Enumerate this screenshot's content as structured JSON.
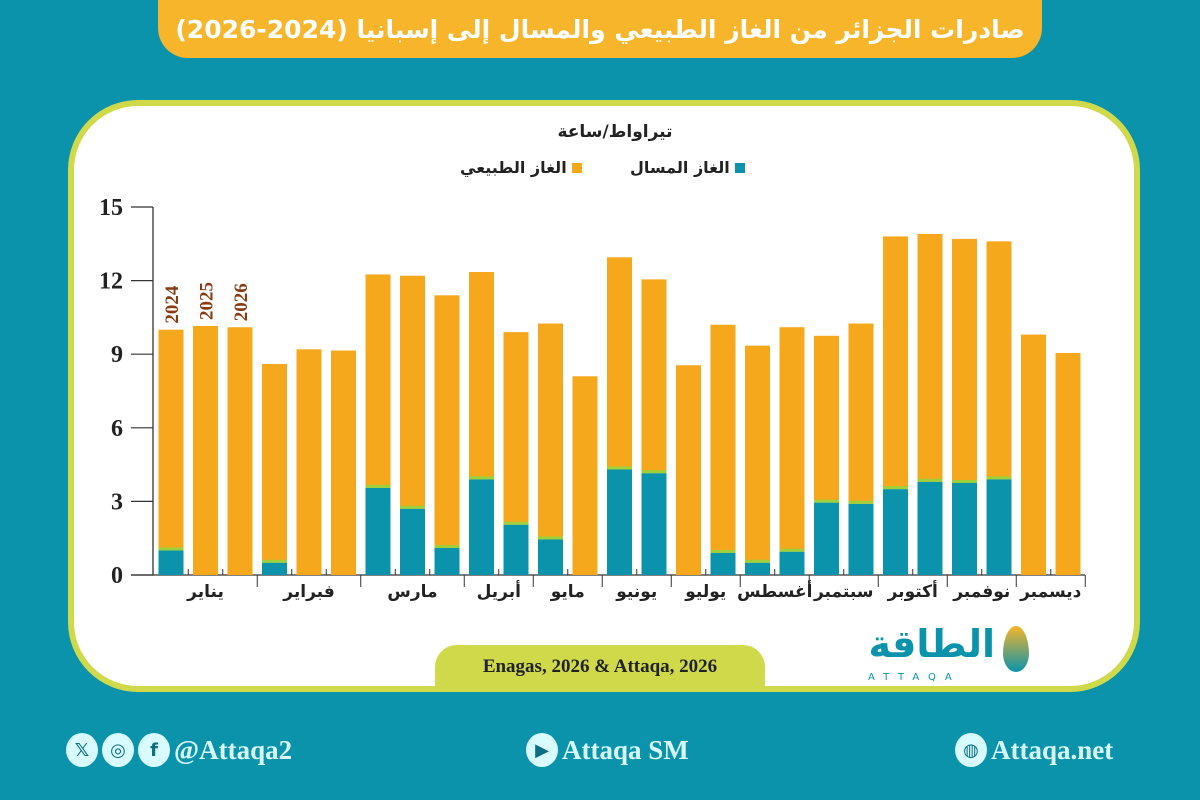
{
  "title": "صادرات الجزائر من الغاز الطبيعي والمسال إلى إسبانيا (2024-2026)",
  "source": "Enagas, 2026 & Attaqa, 2026",
  "logo": {
    "arabic": "الطاقة",
    "english": "ATTAQA"
  },
  "footer": {
    "social_handle": "@Attaqa2",
    "social_icons": [
      "x-icon",
      "instagram-icon",
      "facebook-icon"
    ],
    "youtube": "Attaqa SM",
    "website": "Attaqa.net"
  },
  "colors": {
    "lng": "#0b93ab",
    "natural_gas": "#f5a81c",
    "background": "#0a93ab",
    "title_banner": "#f6b52b",
    "frame": "#cfd94a",
    "year_label": "#8a3b12"
  },
  "chart_data": {
    "type": "bar",
    "stacked": true,
    "ylabel": "تيراواط/ساعة",
    "ylim": [
      0,
      15
    ],
    "yticks": [
      "0",
      "3",
      "6",
      "9",
      "12",
      "15"
    ],
    "grid": false,
    "legend_position": "top",
    "legend": [
      {
        "key": "lng",
        "label": "الغاز المسال"
      },
      {
        "key": "natural_gas",
        "label": "الغاز الطبيعي"
      }
    ],
    "year_labels": [
      "2024",
      "2025",
      "2026"
    ],
    "months": [
      "يناير",
      "فبراير",
      "مارس",
      "أبريل",
      "مايو",
      "يونيو",
      "يوليو",
      "أغسطس",
      "سبتمبر",
      "أكتوبر",
      "نوفمبر",
      "ديسمبر"
    ],
    "bars": [
      {
        "month": 0,
        "year": "2024",
        "lng": 1.0,
        "natural_gas": 9.0
      },
      {
        "month": 0,
        "year": "2025",
        "lng": 0,
        "natural_gas": 10.15
      },
      {
        "month": 0,
        "year": "2026",
        "lng": 0,
        "natural_gas": 10.1
      },
      {
        "month": 1,
        "year": "2024",
        "lng": 0.5,
        "natural_gas": 8.1
      },
      {
        "month": 1,
        "year": "2025",
        "lng": 0,
        "natural_gas": 9.2
      },
      {
        "month": 1,
        "year": "2026",
        "lng": 0,
        "natural_gas": 9.15
      },
      {
        "month": 2,
        "year": "2024",
        "lng": 3.55,
        "natural_gas": 8.7
      },
      {
        "month": 2,
        "year": "2025",
        "lng": 2.7,
        "natural_gas": 9.5
      },
      {
        "month": 2,
        "year": "2026",
        "lng": 1.1,
        "natural_gas": 10.3
      },
      {
        "month": 3,
        "year": "2024",
        "lng": 3.9,
        "natural_gas": 8.45
      },
      {
        "month": 3,
        "year": "2025",
        "lng": 2.05,
        "natural_gas": 7.85
      },
      {
        "month": 4,
        "year": "2024",
        "lng": 1.45,
        "natural_gas": 8.8
      },
      {
        "month": 4,
        "year": "2025",
        "lng": 0,
        "natural_gas": 8.1
      },
      {
        "month": 5,
        "year": "2024",
        "lng": 4.3,
        "natural_gas": 8.65
      },
      {
        "month": 5,
        "year": "2025",
        "lng": 4.15,
        "natural_gas": 7.9
      },
      {
        "month": 6,
        "year": "2024",
        "lng": 0,
        "natural_gas": 8.55
      },
      {
        "month": 6,
        "year": "2025",
        "lng": 0.9,
        "natural_gas": 9.3
      },
      {
        "month": 7,
        "year": "2024",
        "lng": 0.5,
        "natural_gas": 8.85
      },
      {
        "month": 7,
        "year": "2025",
        "lng": 0.95,
        "natural_gas": 9.15
      },
      {
        "month": 8,
        "year": "2024",
        "lng": 2.95,
        "natural_gas": 6.8
      },
      {
        "month": 8,
        "year": "2025",
        "lng": 2.9,
        "natural_gas": 7.35
      },
      {
        "month": 9,
        "year": "2024",
        "lng": 3.5,
        "natural_gas": 10.3
      },
      {
        "month": 9,
        "year": "2025",
        "lng": 3.8,
        "natural_gas": 10.1
      },
      {
        "month": 10,
        "year": "2024",
        "lng": 3.75,
        "natural_gas": 9.95
      },
      {
        "month": 10,
        "year": "2025",
        "lng": 3.9,
        "natural_gas": 9.7
      },
      {
        "month": 11,
        "year": "2024",
        "lng": 0,
        "natural_gas": 9.8
      },
      {
        "month": 11,
        "year": "2025",
        "lng": 0,
        "natural_gas": 9.05
      }
    ]
  }
}
